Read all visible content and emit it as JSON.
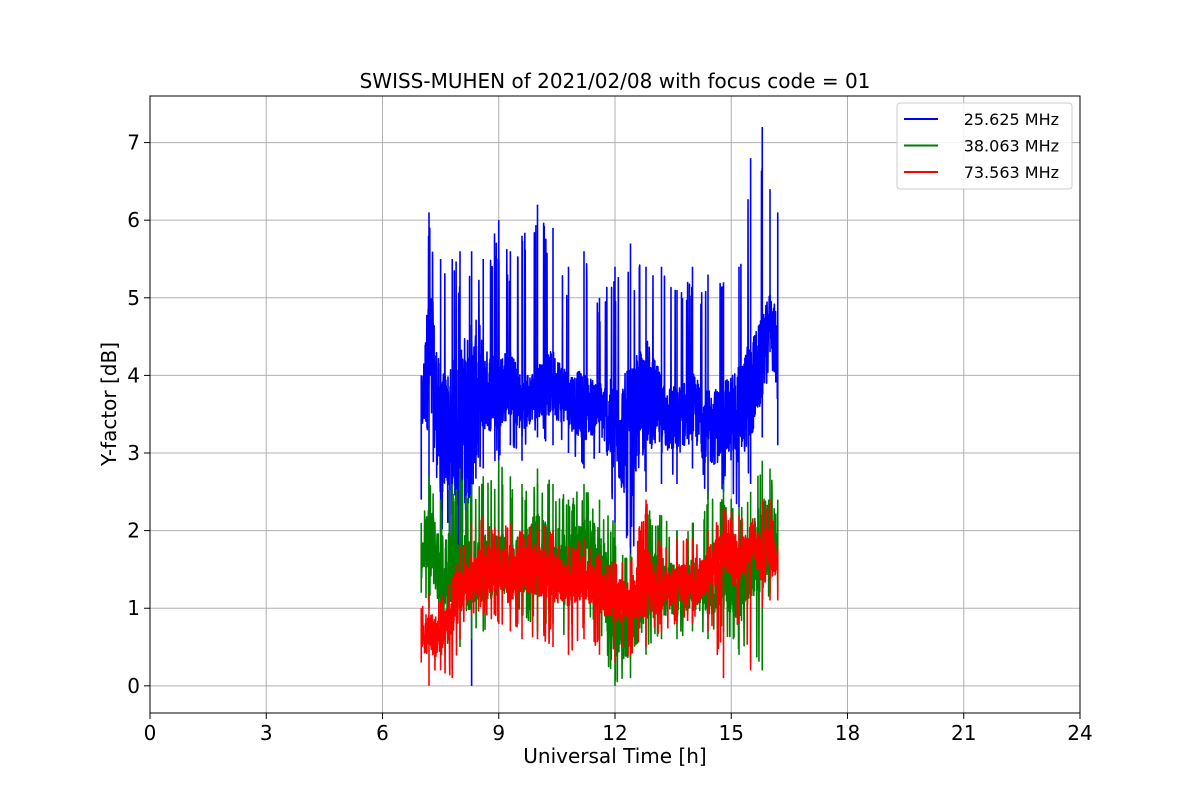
{
  "chart_data": {
    "type": "line",
    "title": "SWISS-MUHEN of 2021/02/08 with focus code = 01",
    "xlabel": "Universal Time [h]",
    "ylabel": "Y-factor [dB]",
    "xlim": [
      0,
      24
    ],
    "ylim": [
      -0.35,
      7.6
    ],
    "xticks": [
      0,
      3,
      6,
      9,
      12,
      15,
      18,
      21,
      24
    ],
    "yticks": [
      0,
      1,
      2,
      3,
      4,
      5,
      6,
      7
    ],
    "grid": true,
    "legend_position": "top-right",
    "series": [
      {
        "name": "25.625 MHz",
        "color": "#0000ff",
        "x": [
          7.0,
          7.2,
          7.5,
          7.8,
          8.0,
          8.3,
          8.6,
          9.0,
          9.3,
          9.6,
          10.0,
          10.4,
          10.8,
          11.2,
          11.6,
          12.0,
          12.4,
          12.8,
          13.2,
          13.6,
          14.0,
          14.4,
          14.8,
          15.2,
          15.5,
          15.8,
          16.0,
          16.2
        ],
        "y": [
          3.5,
          4.3,
          3.2,
          3.4,
          3.1,
          3.6,
          3.8,
          3.8,
          3.9,
          3.6,
          3.8,
          3.9,
          3.7,
          3.6,
          3.6,
          3.3,
          3.2,
          3.8,
          3.5,
          3.4,
          3.6,
          3.3,
          3.4,
          3.5,
          3.8,
          4.2,
          4.8,
          4.2
        ],
        "y_low": [
          2.4,
          2.2,
          1.8,
          1.9,
          1.0,
          0.0,
          2.8,
          2.9,
          3.1,
          2.9,
          3.2,
          3.1,
          3.0,
          2.8,
          3.0,
          2.1,
          1.6,
          2.5,
          2.6,
          2.6,
          2.8,
          2.4,
          2.5,
          2.3,
          2.6,
          3.2,
          4.3,
          3.1
        ],
        "y_high": [
          4.0,
          6.1,
          5.5,
          5.5,
          5.6,
          5.6,
          5.5,
          6.0,
          5.6,
          5.8,
          6.2,
          5.9,
          5.4,
          5.6,
          5.0,
          5.4,
          5.7,
          5.4,
          5.4,
          5.1,
          5.4,
          5.3,
          5.2,
          5.4,
          6.8,
          7.2,
          6.4,
          6.1
        ]
      },
      {
        "name": "38.063 MHz",
        "color": "#008000",
        "x": [
          7.0,
          7.2,
          7.5,
          7.8,
          8.0,
          8.3,
          8.6,
          9.0,
          9.3,
          9.6,
          10.0,
          10.4,
          10.8,
          11.2,
          11.6,
          12.0,
          12.4,
          12.8,
          13.2,
          13.6,
          14.0,
          14.4,
          14.8,
          15.2,
          15.5,
          15.8,
          16.0,
          16.2
        ],
        "y": [
          1.6,
          1.9,
          1.5,
          1.4,
          1.5,
          1.4,
          1.5,
          1.6,
          1.5,
          1.6,
          1.7,
          1.6,
          1.5,
          1.7,
          1.6,
          0.8,
          0.6,
          1.3,
          1.3,
          1.2,
          1.3,
          1.2,
          1.4,
          1.3,
          1.6,
          1.8,
          2.0,
          1.9
        ],
        "y_low": [
          1.2,
          1.0,
          0.6,
          0.4,
          0.5,
          0.6,
          0.7,
          0.8,
          0.9,
          0.9,
          0.7,
          0.8,
          0.6,
          0.8,
          0.6,
          0.0,
          0.1,
          0.4,
          0.6,
          0.6,
          0.7,
          0.6,
          0.7,
          0.4,
          0.3,
          0.2,
          1.2,
          1.2
        ],
        "y_high": [
          2.1,
          2.7,
          2.4,
          2.6,
          2.8,
          2.6,
          2.7,
          2.9,
          2.7,
          2.6,
          2.8,
          2.6,
          2.4,
          2.6,
          2.4,
          2.1,
          1.7,
          2.3,
          2.2,
          2.0,
          2.1,
          2.5,
          2.6,
          2.3,
          2.5,
          2.9,
          2.8,
          2.4
        ]
      },
      {
        "name": "73.563 MHz",
        "color": "#ff0000",
        "x": [
          7.0,
          7.2,
          7.5,
          7.8,
          8.0,
          8.3,
          8.6,
          9.0,
          9.3,
          9.6,
          10.0,
          10.4,
          10.8,
          11.2,
          11.6,
          12.0,
          12.4,
          12.8,
          13.2,
          13.6,
          14.0,
          14.4,
          14.8,
          15.2,
          15.5,
          15.8,
          16.0,
          16.2
        ],
        "y": [
          0.6,
          0.7,
          0.6,
          0.9,
          1.2,
          1.4,
          1.5,
          1.5,
          1.4,
          1.5,
          1.5,
          1.4,
          1.3,
          1.4,
          1.2,
          1.1,
          1.1,
          1.4,
          1.2,
          1.3,
          1.3,
          1.5,
          1.7,
          1.6,
          1.8,
          1.7,
          1.7,
          1.6
        ],
        "y_low": [
          0.3,
          0.0,
          0.2,
          0.1,
          0.6,
          0.9,
          0.9,
          0.8,
          0.7,
          0.6,
          0.6,
          0.5,
          0.4,
          0.6,
          0.4,
          0.3,
          0.4,
          0.5,
          0.7,
          0.8,
          0.8,
          0.7,
          0.1,
          0.8,
          0.2,
          1.0,
          1.1,
          1.1
        ],
        "y_high": [
          1.0,
          1.2,
          1.1,
          1.4,
          1.8,
          2.1,
          2.2,
          2.0,
          2.1,
          2.0,
          2.1,
          2.0,
          1.8,
          1.9,
          1.7,
          1.6,
          1.6,
          2.4,
          1.8,
          1.9,
          1.9,
          2.0,
          2.3,
          2.2,
          2.1,
          2.4,
          2.4,
          1.8
        ]
      }
    ]
  }
}
